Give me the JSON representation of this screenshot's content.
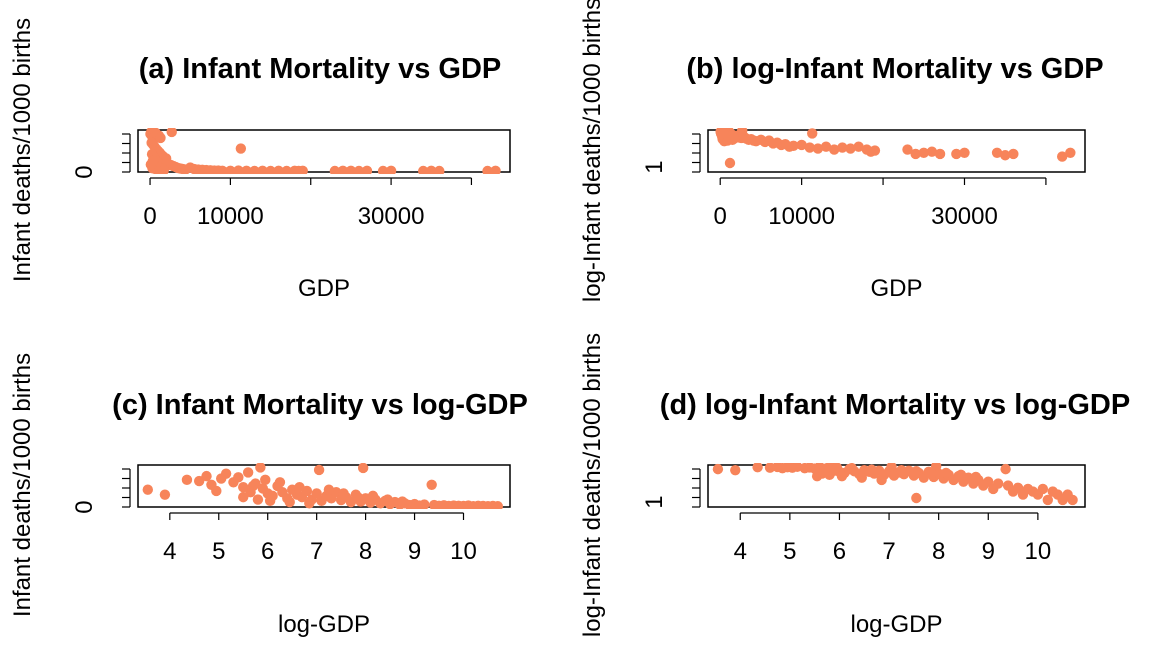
{
  "figure": {
    "point_color": "#f7845a",
    "background": "#ffffff"
  },
  "chart_data": [
    {
      "type": "scatter",
      "title": "(a) Infant Mortality vs GDP",
      "xlabel": "GDP",
      "ylabel": "Infant deaths/1000 births",
      "x_ticks": [
        0,
        10000,
        30000
      ],
      "x_tick_labels": [
        "0",
        "10000",
        "30000"
      ],
      "x_minor_ticks": [
        20000,
        40000
      ],
      "y_ticks": [
        0
      ],
      "y_tick_labels": [
        "0"
      ],
      "xlim": [
        -1500,
        44800
      ],
      "ylim": [
        0,
        170
      ],
      "points": [
        [
          50,
          154
        ],
        [
          150,
          162
        ],
        [
          300,
          140
        ],
        [
          500,
          161
        ],
        [
          700,
          158
        ],
        [
          900,
          150
        ],
        [
          1100,
          147
        ],
        [
          1300,
          138
        ],
        [
          200,
          118
        ],
        [
          400,
          110
        ],
        [
          600,
          100
        ],
        [
          800,
          92
        ],
        [
          1000,
          85
        ],
        [
          1200,
          78
        ],
        [
          1400,
          70
        ],
        [
          1600,
          64
        ],
        [
          1800,
          58
        ],
        [
          2000,
          55
        ],
        [
          250,
          72
        ],
        [
          450,
          60
        ],
        [
          650,
          50
        ],
        [
          850,
          42
        ],
        [
          1050,
          36
        ],
        [
          1250,
          30
        ],
        [
          1450,
          26
        ],
        [
          1650,
          22
        ],
        [
          1850,
          20
        ],
        [
          2100,
          38
        ],
        [
          2300,
          32
        ],
        [
          2600,
          28
        ],
        [
          2900,
          24
        ],
        [
          3200,
          20
        ],
        [
          3500,
          16
        ],
        [
          3800,
          14
        ],
        [
          4100,
          12
        ],
        [
          4400,
          10
        ],
        [
          2700,
          162
        ],
        [
          11300,
          95
        ],
        [
          5000,
          18
        ],
        [
          5500,
          12
        ],
        [
          6000,
          10
        ],
        [
          6500,
          9
        ],
        [
          7000,
          8
        ],
        [
          7500,
          7
        ],
        [
          8000,
          6
        ],
        [
          8500,
          6
        ],
        [
          9000,
          5
        ],
        [
          10000,
          5
        ],
        [
          11000,
          6
        ],
        [
          12000,
          5
        ],
        [
          13000,
          4
        ],
        [
          14000,
          5
        ],
        [
          15000,
          4
        ],
        [
          16000,
          5
        ],
        [
          17000,
          4
        ],
        [
          18000,
          5
        ],
        [
          18500,
          4
        ],
        [
          19000,
          5
        ],
        [
          23000,
          4
        ],
        [
          24000,
          5
        ],
        [
          25000,
          5
        ],
        [
          26000,
          4
        ],
        [
          27000,
          5
        ],
        [
          29000,
          4
        ],
        [
          30000,
          5
        ],
        [
          34000,
          4
        ],
        [
          35000,
          5
        ],
        [
          36000,
          4
        ],
        [
          42000,
          4
        ],
        [
          43000,
          5
        ],
        [
          300,
          15
        ],
        [
          500,
          25
        ],
        [
          700,
          12
        ],
        [
          900,
          8
        ],
        [
          1100,
          18
        ],
        [
          1300,
          10
        ],
        [
          1500,
          14
        ],
        [
          1700,
          6
        ],
        [
          100,
          30
        ],
        [
          350,
          45
        ]
      ]
    },
    {
      "type": "scatter",
      "title": "(b) log-Infant Mortality vs GDP",
      "xlabel": "GDP",
      "ylabel": "log-Infant deaths/1000 births",
      "y_scale": "log",
      "x_ticks": [
        0,
        10000,
        30000
      ],
      "x_tick_labels": [
        "0",
        "10000",
        "30000"
      ],
      "x_minor_ticks": [
        20000,
        40000
      ],
      "y_ticks": [
        1
      ],
      "y_tick_labels": [
        "1"
      ],
      "xlim": [
        -1500,
        44800
      ],
      "ylim": [
        0.8,
        5.3
      ],
      "points": [
        [
          50,
          4.9
        ],
        [
          150,
          5.05
        ],
        [
          300,
          4.75
        ],
        [
          500,
          5.0
        ],
        [
          700,
          4.8
        ],
        [
          900,
          4.6
        ],
        [
          1100,
          4.9
        ],
        [
          1300,
          4.5
        ],
        [
          200,
          4.2
        ],
        [
          400,
          4.4
        ],
        [
          600,
          4.1
        ],
        [
          800,
          4.3
        ],
        [
          1000,
          3.95
        ],
        [
          1200,
          4.2
        ],
        [
          1400,
          3.9
        ],
        [
          1600,
          4.1
        ],
        [
          1800,
          3.8
        ],
        [
          2000,
          4.0
        ],
        [
          250,
          3.9
        ],
        [
          450,
          3.6
        ],
        [
          650,
          4.5
        ],
        [
          850,
          3.7
        ],
        [
          1050,
          4.6
        ],
        [
          1250,
          3.5
        ],
        [
          1450,
          4.3
        ],
        [
          1650,
          3.6
        ],
        [
          1850,
          3.9
        ],
        [
          2100,
          4.1
        ],
        [
          2300,
          3.8
        ],
        [
          2600,
          3.7
        ],
        [
          2900,
          3.9
        ],
        [
          3200,
          3.6
        ],
        [
          3500,
          3.4
        ],
        [
          3800,
          3.5
        ],
        [
          4100,
          3.3
        ],
        [
          4400,
          3.2
        ],
        [
          2700,
          5.1
        ],
        [
          11300,
          4.55
        ],
        [
          1200,
          1.2
        ],
        [
          5000,
          3.4
        ],
        [
          5500,
          3.1
        ],
        [
          6000,
          3.3
        ],
        [
          6500,
          2.9
        ],
        [
          7000,
          3.0
        ],
        [
          7500,
          2.7
        ],
        [
          8000,
          2.8
        ],
        [
          8500,
          2.5
        ],
        [
          9000,
          2.6
        ],
        [
          10000,
          2.7
        ],
        [
          11000,
          2.4
        ],
        [
          12000,
          2.3
        ],
        [
          13000,
          2.5
        ],
        [
          14000,
          2.2
        ],
        [
          15000,
          2.4
        ],
        [
          16000,
          2.3
        ],
        [
          17000,
          2.5
        ],
        [
          18000,
          2.2
        ],
        [
          18500,
          2.0
        ],
        [
          19000,
          2.1
        ],
        [
          23000,
          2.2
        ],
        [
          24000,
          1.8
        ],
        [
          25000,
          1.9
        ],
        [
          26000,
          2.0
        ],
        [
          27000,
          1.8
        ],
        [
          29000,
          1.8
        ],
        [
          30000,
          1.9
        ],
        [
          34000,
          1.9
        ],
        [
          35000,
          1.7
        ],
        [
          36000,
          1.8
        ],
        [
          42000,
          1.6
        ],
        [
          43000,
          1.9
        ],
        [
          300,
          3.5
        ],
        [
          500,
          3.2
        ],
        [
          700,
          4.0
        ],
        [
          900,
          3.3
        ],
        [
          1100,
          3.7
        ],
        [
          1300,
          4.0
        ],
        [
          1500,
          3.4
        ],
        [
          1700,
          3.6
        ],
        [
          100,
          4.5
        ],
        [
          350,
          4.7
        ]
      ]
    },
    {
      "type": "scatter",
      "title": "(c) Infant Mortality vs log-GDP",
      "xlabel": "log-GDP",
      "ylabel": "Infant deaths/1000 births",
      "x_ticks": [
        4,
        5,
        6,
        7,
        8,
        9,
        10
      ],
      "x_tick_labels": [
        "4",
        "5",
        "6",
        "7",
        "8",
        "9",
        "10"
      ],
      "y_ticks": [
        0
      ],
      "y_tick_labels": [
        "0"
      ],
      "xlim": [
        3.35,
        10.95
      ],
      "ylim": [
        0,
        170
      ],
      "points": [
        [
          3.55,
          70
        ],
        [
          3.9,
          50
        ],
        [
          4.35,
          110
        ],
        [
          4.6,
          105
        ],
        [
          4.75,
          125
        ],
        [
          4.85,
          90
        ],
        [
          4.95,
          65
        ],
        [
          5.05,
          115
        ],
        [
          5.15,
          135
        ],
        [
          5.3,
          100
        ],
        [
          5.4,
          120
        ],
        [
          5.5,
          80
        ],
        [
          5.6,
          140
        ],
        [
          5.75,
          95
        ],
        [
          5.85,
          160
        ],
        [
          5.95,
          110
        ],
        [
          5.5,
          40
        ],
        [
          5.65,
          60
        ],
        [
          5.8,
          30
        ],
        [
          5.9,
          75
        ],
        [
          6.0,
          55
        ],
        [
          6.1,
          45
        ],
        [
          6.2,
          85
        ],
        [
          6.3,
          60
        ],
        [
          6.4,
          35
        ],
        [
          6.5,
          70
        ],
        [
          6.6,
          50
        ],
        [
          6.7,
          40
        ],
        [
          6.8,
          65
        ],
        [
          6.9,
          30
        ],
        [
          7.0,
          55
        ],
        [
          7.05,
          150
        ],
        [
          7.1,
          25
        ],
        [
          7.2,
          45
        ],
        [
          7.3,
          35
        ],
        [
          7.4,
          60
        ],
        [
          7.5,
          28
        ],
        [
          7.6,
          40
        ],
        [
          7.7,
          20
        ],
        [
          7.8,
          50
        ],
        [
          7.9,
          22
        ],
        [
          7.95,
          158
        ],
        [
          8.0,
          35
        ],
        [
          8.1,
          18
        ],
        [
          8.2,
          30
        ],
        [
          8.3,
          15
        ],
        [
          8.4,
          25
        ],
        [
          8.5,
          12
        ],
        [
          8.6,
          20
        ],
        [
          8.7,
          10
        ],
        [
          8.8,
          15
        ],
        [
          8.9,
          8
        ],
        [
          9.0,
          12
        ],
        [
          9.1,
          6
        ],
        [
          9.2,
          10
        ],
        [
          9.35,
          90
        ],
        [
          9.4,
          8
        ],
        [
          9.5,
          5
        ],
        [
          9.6,
          7
        ],
        [
          9.7,
          4
        ],
        [
          9.8,
          6
        ],
        [
          9.9,
          5
        ],
        [
          10.0,
          4
        ],
        [
          10.1,
          6
        ],
        [
          10.2,
          3
        ],
        [
          10.3,
          5
        ],
        [
          10.4,
          4
        ],
        [
          10.5,
          3
        ],
        [
          10.6,
          4
        ],
        [
          10.7,
          3
        ],
        [
          5.7,
          85
        ],
        [
          6.05,
          25
        ],
        [
          6.25,
          100
        ],
        [
          6.45,
          20
        ],
        [
          6.65,
          80
        ],
        [
          6.85,
          15
        ],
        [
          7.25,
          70
        ],
        [
          7.55,
          55
        ],
        [
          7.85,
          38
        ],
        [
          8.15,
          45
        ],
        [
          8.45,
          30
        ],
        [
          8.75,
          22
        ]
      ]
    },
    {
      "type": "scatter",
      "title": "(d) log-Infant Mortality vs log-GDP",
      "xlabel": "log-GDP",
      "ylabel": "log-Infant deaths/1000 births",
      "y_scale": "log",
      "x_ticks": [
        4,
        5,
        6,
        7,
        8,
        9,
        10
      ],
      "x_tick_labels": [
        "4",
        "5",
        "6",
        "7",
        "8",
        "9",
        "10"
      ],
      "y_ticks": [
        1
      ],
      "y_tick_labels": [
        "1"
      ],
      "xlim": [
        3.35,
        10.95
      ],
      "ylim": [
        0.8,
        5.3
      ],
      "points": [
        [
          3.55,
          4.4
        ],
        [
          3.9,
          4.2
        ],
        [
          4.35,
          4.8
        ],
        [
          4.6,
          4.7
        ],
        [
          4.75,
          4.85
        ],
        [
          4.85,
          4.6
        ],
        [
          4.95,
          4.8
        ],
        [
          5.05,
          4.7
        ],
        [
          5.15,
          4.9
        ],
        [
          5.3,
          4.6
        ],
        [
          5.4,
          4.75
        ],
        [
          5.5,
          4.5
        ],
        [
          5.6,
          4.9
        ],
        [
          5.75,
          4.6
        ],
        [
          5.85,
          4.95
        ],
        [
          5.95,
          4.7
        ],
        [
          5.55,
          3.2
        ],
        [
          5.65,
          3.6
        ],
        [
          5.8,
          3.4
        ],
        [
          5.9,
          4.1
        ],
        [
          6.0,
          3.9
        ],
        [
          6.1,
          3.7
        ],
        [
          6.2,
          4.4
        ],
        [
          6.3,
          4.0
        ],
        [
          6.4,
          3.5
        ],
        [
          6.5,
          4.2
        ],
        [
          6.6,
          3.9
        ],
        [
          6.7,
          3.6
        ],
        [
          6.8,
          4.1
        ],
        [
          6.9,
          3.4
        ],
        [
          7.0,
          4.0
        ],
        [
          7.05,
          4.9
        ],
        [
          7.1,
          3.3
        ],
        [
          7.2,
          3.8
        ],
        [
          7.3,
          3.5
        ],
        [
          7.4,
          4.1
        ],
        [
          7.5,
          3.3
        ],
        [
          7.55,
          1.2
        ],
        [
          7.6,
          3.7
        ],
        [
          7.7,
          3.0
        ],
        [
          7.8,
          3.9
        ],
        [
          7.9,
          3.1
        ],
        [
          7.95,
          5.0
        ],
        [
          8.0,
          3.6
        ],
        [
          8.1,
          2.9
        ],
        [
          8.2,
          3.4
        ],
        [
          8.3,
          2.7
        ],
        [
          8.4,
          3.2
        ],
        [
          8.5,
          2.5
        ],
        [
          8.6,
          3.0
        ],
        [
          8.7,
          2.3
        ],
        [
          8.8,
          2.7
        ],
        [
          8.9,
          2.1
        ],
        [
          9.0,
          2.5
        ],
        [
          9.1,
          1.8
        ],
        [
          9.2,
          2.3
        ],
        [
          9.35,
          4.4
        ],
        [
          9.4,
          2.1
        ],
        [
          9.5,
          1.6
        ],
        [
          9.6,
          1.9
        ],
        [
          9.7,
          1.4
        ],
        [
          9.8,
          1.8
        ],
        [
          9.9,
          1.6
        ],
        [
          10.0,
          1.4
        ],
        [
          10.1,
          1.8
        ],
        [
          10.2,
          1.1
        ],
        [
          10.3,
          1.6
        ],
        [
          10.4,
          1.4
        ],
        [
          10.5,
          1.1
        ],
        [
          10.6,
          1.4
        ],
        [
          10.7,
          1.1
        ],
        [
          5.7,
          4.4
        ],
        [
          6.05,
          3.2
        ],
        [
          6.25,
          4.6
        ],
        [
          6.45,
          3.0
        ],
        [
          6.65,
          4.3
        ],
        [
          6.85,
          2.7
        ],
        [
          7.25,
          4.2
        ],
        [
          7.55,
          4.0
        ],
        [
          7.85,
          3.6
        ],
        [
          8.15,
          3.7
        ],
        [
          8.45,
          3.4
        ],
        [
          8.75,
          3.1
        ]
      ]
    }
  ]
}
